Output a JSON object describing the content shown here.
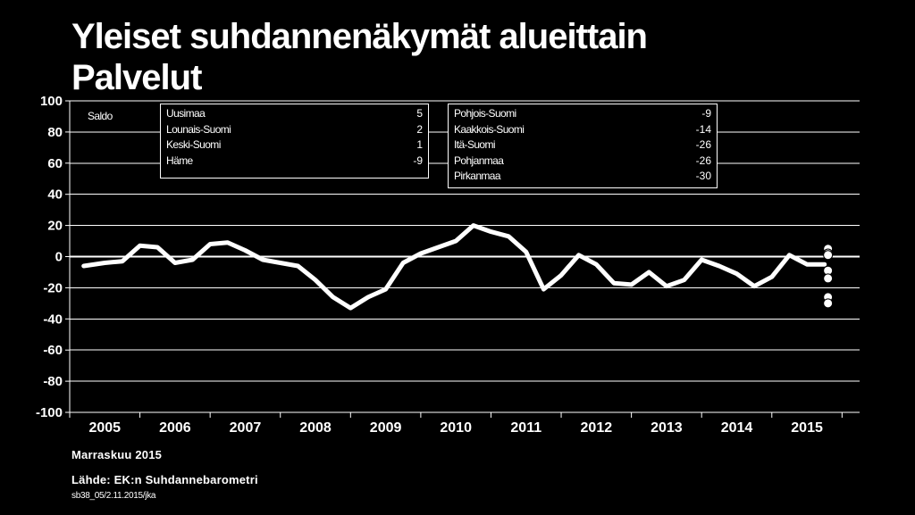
{
  "header": {
    "title_line1": "Yleiset suhdannenäkymät alueittain",
    "title_line2": "Palvelut"
  },
  "chart_data": {
    "type": "line",
    "ylabel": "Saldo",
    "ylim": [
      -100,
      100
    ],
    "yticks": [
      100,
      80,
      60,
      40,
      20,
      0,
      -20,
      -40,
      -60,
      -80,
      -100
    ],
    "xlim": [
      2004.5,
      2015.75
    ],
    "year_labels": [
      "2005",
      "2006",
      "2007",
      "2008",
      "2009",
      "2010",
      "2011",
      "2012",
      "2013",
      "2014",
      "2015"
    ],
    "grid": true,
    "series": [
      {
        "values": [
          [
            2004.7,
            -6
          ],
          [
            2005.0,
            -4
          ],
          [
            2005.25,
            -3
          ],
          [
            2005.5,
            7
          ],
          [
            2005.75,
            6
          ],
          [
            2006.0,
            -4
          ],
          [
            2006.25,
            -2
          ],
          [
            2006.5,
            8
          ],
          [
            2006.75,
            9
          ],
          [
            2007.0,
            4
          ],
          [
            2007.25,
            -2
          ],
          [
            2007.5,
            -4
          ],
          [
            2007.75,
            -6
          ],
          [
            2008.0,
            -15
          ],
          [
            2008.25,
            -26
          ],
          [
            2008.5,
            -33
          ],
          [
            2008.75,
            -26
          ],
          [
            2009.0,
            -21
          ],
          [
            2009.25,
            -4
          ],
          [
            2009.5,
            2
          ],
          [
            2009.75,
            6
          ],
          [
            2010.0,
            10
          ],
          [
            2010.25,
            20
          ],
          [
            2010.5,
            16
          ],
          [
            2010.75,
            13
          ],
          [
            2011.0,
            3
          ],
          [
            2011.25,
            -21
          ],
          [
            2011.5,
            -12
          ],
          [
            2011.75,
            1
          ],
          [
            2012.0,
            -5
          ],
          [
            2012.25,
            -17
          ],
          [
            2012.5,
            -18
          ],
          [
            2012.75,
            -10
          ],
          [
            2013.0,
            -19
          ],
          [
            2013.25,
            -15
          ],
          [
            2013.5,
            -2
          ],
          [
            2013.75,
            -6
          ],
          [
            2014.0,
            -11
          ],
          [
            2014.25,
            -19
          ],
          [
            2014.5,
            -13
          ],
          [
            2014.75,
            1
          ],
          [
            2015.0,
            -5
          ],
          [
            2015.25,
            -5
          ]
        ]
      }
    ],
    "region_points_x": 2015.3,
    "regions_left": [
      {
        "name": "Uusimaa",
        "value": 5
      },
      {
        "name": "Lounais-Suomi",
        "value": 2
      },
      {
        "name": "Keski-Suomi",
        "value": 1
      },
      {
        "name": "Häme",
        "value": -9
      }
    ],
    "regions_right": [
      {
        "name": "Pohjois-Suomi",
        "value": -9
      },
      {
        "name": "Kaakkois-Suomi",
        "value": -14
      },
      {
        "name": "Itä-Suomi",
        "value": -26
      },
      {
        "name": "Pohjanmaa",
        "value": -26
      },
      {
        "name": "Pirkanmaa",
        "value": -30
      }
    ]
  },
  "footer": {
    "date": "Marraskuu 2015",
    "source": "Lähde: EK:n Suhdannebarometri",
    "code": "sb38_05/2.11.2015/jka"
  },
  "colors": {
    "background": "#000000",
    "line": "#ffffff",
    "grid": "#ffffff",
    "points": "#ffffff"
  }
}
